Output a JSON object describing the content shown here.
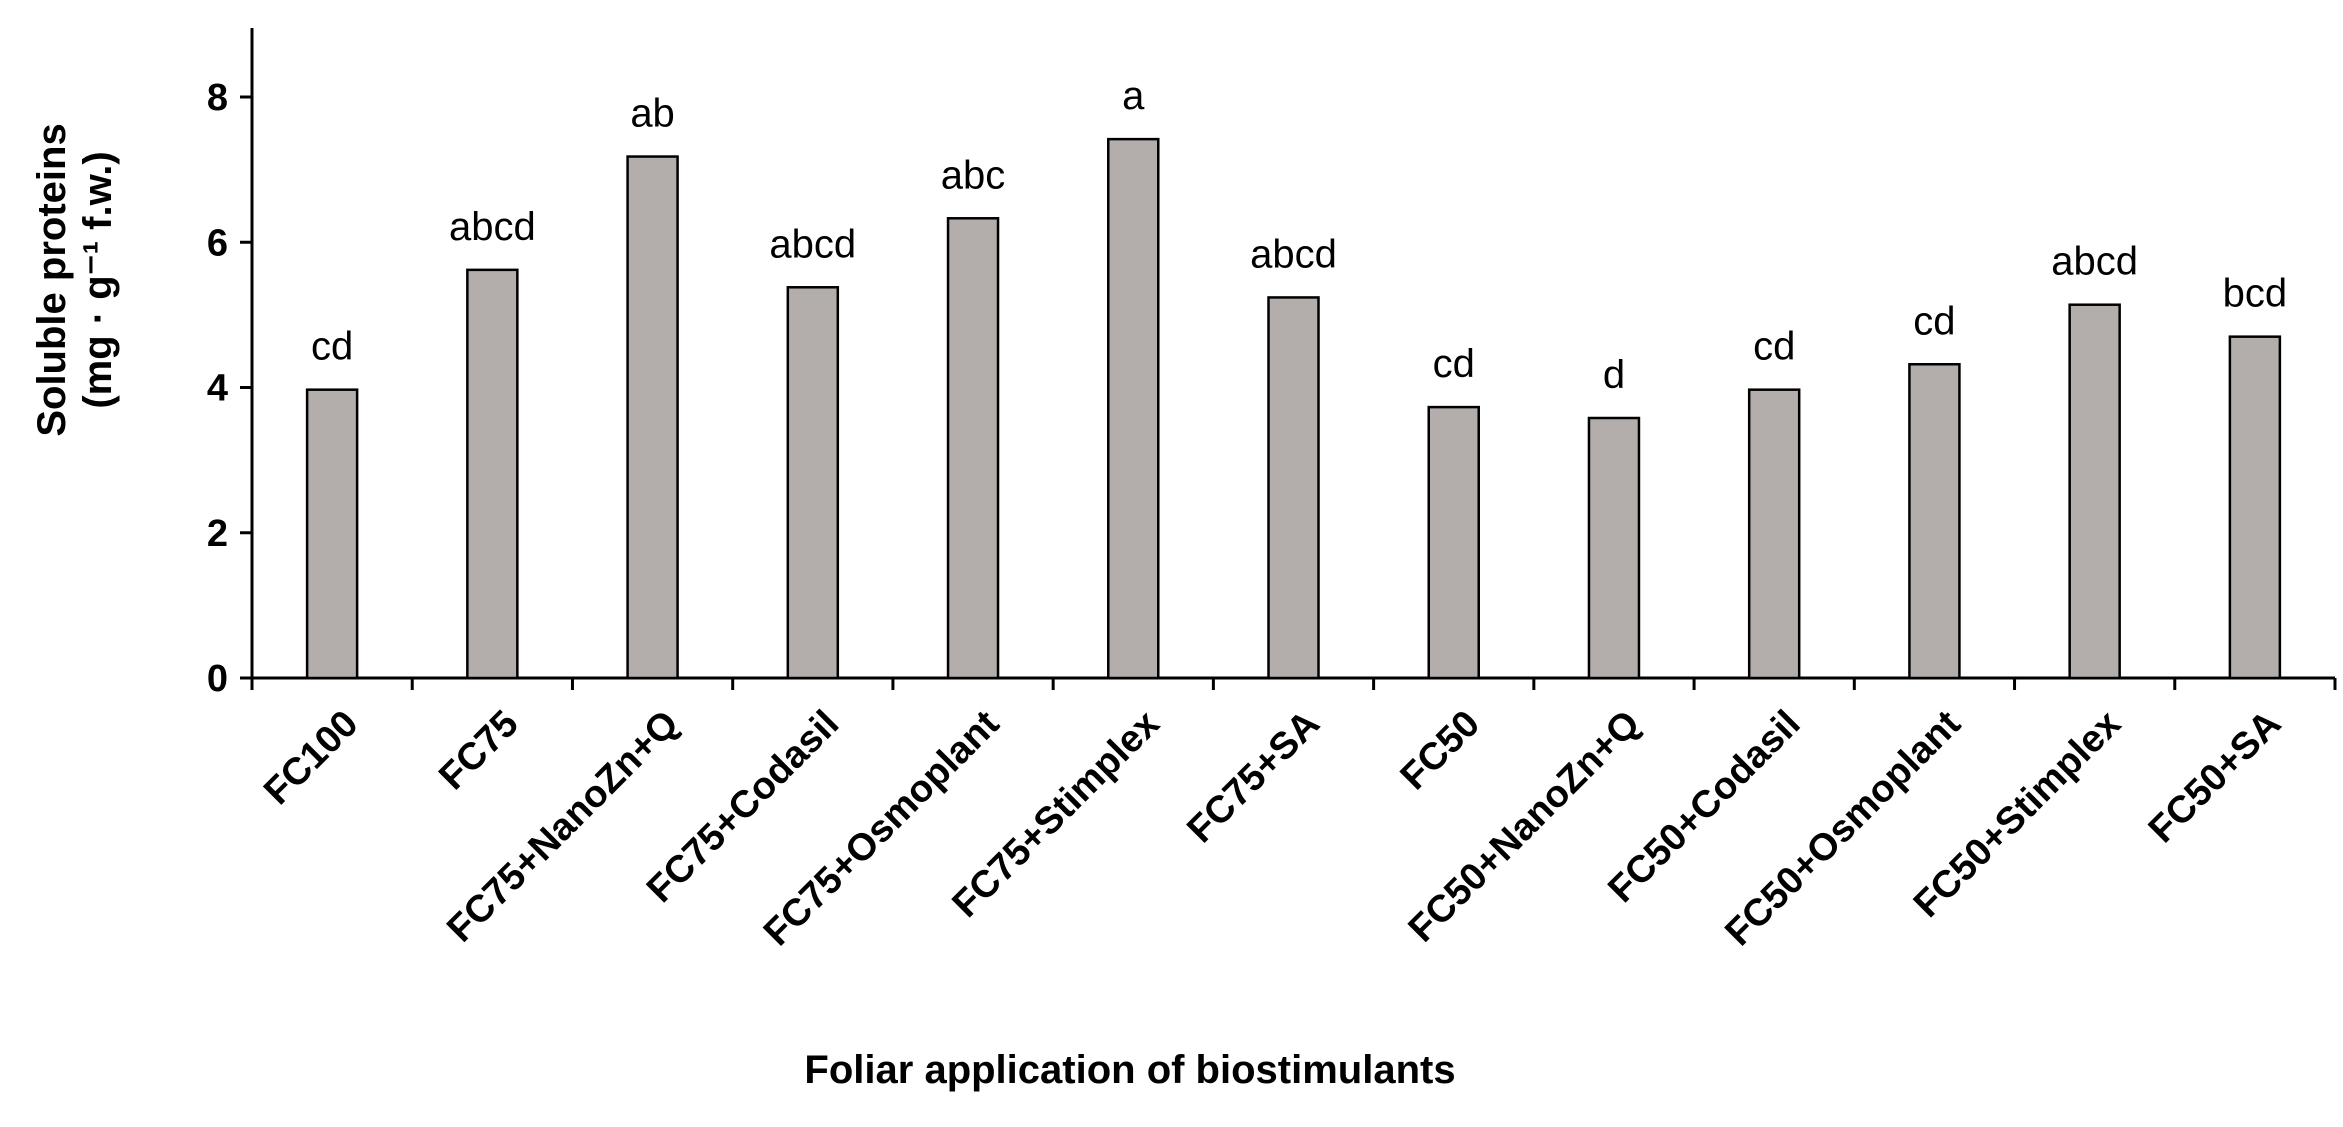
{
  "chart_data": {
    "type": "bar",
    "xlabel": "Foliar application of biostimulants",
    "ylabel_line1": "Soluble proteins",
    "ylabel_line2": "(mg · g⁻¹ f.w.)",
    "ylim": [
      0,
      8.5
    ],
    "yticks": [
      0,
      2,
      4,
      6,
      8
    ],
    "grid": false,
    "bar_color": "#b3adab",
    "categories": [
      "FC100",
      "FC75",
      "FC75+NanoZn+Q",
      "FC75+Codasil",
      "FC75+Osmoplant",
      "FC75+Stimplex",
      "FC75+SA",
      "FC50",
      "FC50+NanoZn+Q",
      "FC50+Codasil",
      "FC50+Osmoplant",
      "FC50+Stimplex",
      "FC50+SA"
    ],
    "values": [
      3.97,
      5.62,
      7.18,
      5.38,
      6.33,
      7.42,
      5.24,
      3.73,
      3.58,
      3.97,
      4.32,
      5.14,
      4.7
    ],
    "labels": [
      "cd",
      "abcd",
      "ab",
      "abcd",
      "abc",
      "a",
      "abcd",
      "cd",
      "d",
      "cd",
      "cd",
      "abcd",
      "bcd"
    ]
  }
}
